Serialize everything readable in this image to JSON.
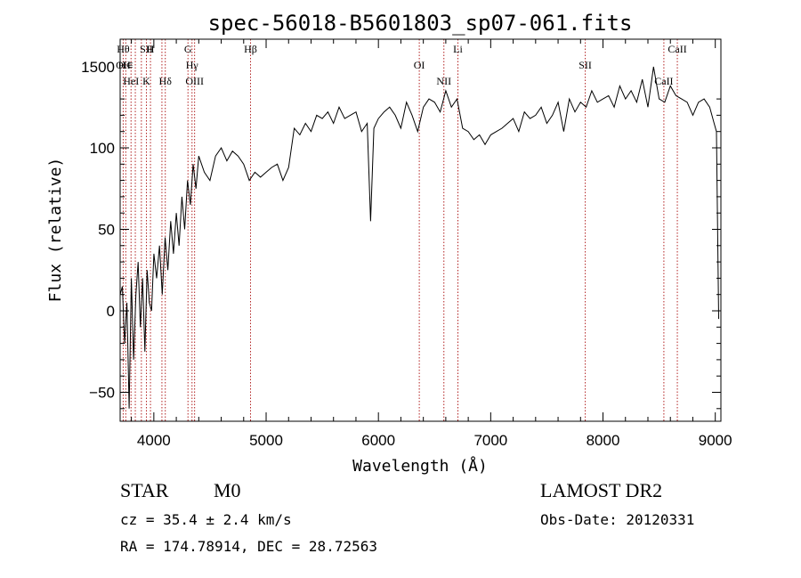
{
  "chart_data": {
    "type": "line",
    "title": "spec-56018-B5601803_sp07-061.fits",
    "xlabel": "Wavelength (Å)",
    "ylabel": "Flux (relative)",
    "xlim": [
      3700,
      9050
    ],
    "ylim": [
      -68,
      1665
    ],
    "x_ticks": [
      4000,
      5000,
      6000,
      7000,
      8000,
      9000
    ],
    "y_ticks": [
      -50,
      0,
      50,
      100,
      1500
    ],
    "y_tick_labels": [
      "−50",
      "0",
      "50",
      "100",
      "1500"
    ],
    "series": [
      {
        "x": [
          3700,
          3720,
          3740,
          3760,
          3780,
          3800,
          3820,
          3840,
          3860,
          3880,
          3900,
          3920,
          3940,
          3960,
          3980,
          4000,
          4025,
          4050,
          4075,
          4100,
          4125,
          4150,
          4175,
          4200,
          4225,
          4250,
          4275,
          4300,
          4325,
          4350,
          4375,
          4400,
          4450,
          4500,
          4550,
          4600,
          4650,
          4700,
          4750,
          4800,
          4850,
          4900,
          4950,
          5000,
          5050,
          5100,
          5150,
          5200,
          5250,
          5300,
          5350,
          5400,
          5450,
          5500,
          5550,
          5600,
          5650,
          5700,
          5750,
          5800,
          5850,
          5900,
          5930,
          5960,
          6000,
          6050,
          6100,
          6150,
          6200,
          6250,
          6300,
          6350,
          6400,
          6450,
          6500,
          6550,
          6600,
          6650,
          6700,
          6750,
          6800,
          6850,
          6900,
          6950,
          7000,
          7050,
          7100,
          7150,
          7200,
          7250,
          7300,
          7350,
          7400,
          7450,
          7500,
          7550,
          7600,
          7650,
          7700,
          7750,
          7800,
          7850,
          7900,
          7950,
          8000,
          8050,
          8100,
          8150,
          8200,
          8250,
          8300,
          8350,
          8400,
          8450,
          8500,
          8550,
          8600,
          8650,
          8700,
          8750,
          8800,
          8850,
          8900,
          8950,
          8990,
          9010,
          9030
        ],
        "y": [
          10,
          15,
          -20,
          5,
          -60,
          20,
          -30,
          10,
          30,
          -10,
          20,
          -25,
          25,
          5,
          0,
          35,
          20,
          40,
          10,
          45,
          25,
          55,
          35,
          60,
          40,
          70,
          50,
          80,
          65,
          90,
          75,
          95,
          85,
          80,
          95,
          100,
          92,
          98,
          95,
          90,
          80,
          85,
          82,
          85,
          88,
          90,
          80,
          88,
          112,
          108,
          115,
          110,
          120,
          118,
          122,
          115,
          125,
          118,
          120,
          122,
          110,
          115,
          55,
          112,
          118,
          122,
          125,
          120,
          112,
          128,
          120,
          110,
          125,
          130,
          128,
          122,
          135,
          125,
          130,
          112,
          110,
          105,
          108,
          102,
          108,
          110,
          112,
          115,
          118,
          110,
          122,
          118,
          120,
          125,
          115,
          120,
          128,
          110,
          130,
          122,
          128,
          125,
          135,
          128,
          130,
          132,
          125,
          138,
          130,
          135,
          128,
          142,
          125,
          1500,
          130,
          128,
          138,
          132,
          130,
          128,
          120,
          128,
          130,
          125,
          115,
          110,
          -5
        ]
      }
    ],
    "line_markers": [
      {
        "wl": 3727,
        "labels": [
          "Hθ",
          "OII"
        ]
      },
      {
        "wl": 3750,
        "labels": [
          "H∊"
        ]
      },
      {
        "wl": 3797,
        "labels": [
          "HeI"
        ]
      },
      {
        "wl": 3835,
        "labels": []
      },
      {
        "wl": 3889,
        "labels": []
      },
      {
        "wl": 3934,
        "labels": [
          "K",
          "SII"
        ]
      },
      {
        "wl": 3970,
        "labels": [
          "H"
        ]
      },
      {
        "wl": 4072,
        "labels": []
      },
      {
        "wl": 4102,
        "labels": [
          "Hδ"
        ]
      },
      {
        "wl": 4304,
        "labels": [
          "G"
        ]
      },
      {
        "wl": 4340,
        "labels": [
          "Hγ"
        ]
      },
      {
        "wl": 4363,
        "labels": [
          "OIII"
        ]
      },
      {
        "wl": 4861,
        "labels": [
          "Hβ"
        ]
      },
      {
        "wl": 6364,
        "labels": [
          "OI"
        ]
      },
      {
        "wl": 6583,
        "labels": [
          "NII"
        ]
      },
      {
        "wl": 6708,
        "labels": [
          "Li"
        ]
      },
      {
        "wl": 7842,
        "labels": [
          "SII"
        ]
      },
      {
        "wl": 8542,
        "labels": [
          "CaII"
        ]
      },
      {
        "wl": 8662,
        "labels": [
          "CaII"
        ]
      }
    ],
    "line_color": "#b22222",
    "grid": false,
    "legend": "none"
  },
  "info": {
    "class_label": "STAR",
    "subclass": "M0",
    "cz_text": "cz = 35.4 ± 2.4 km/s",
    "coords_text": "RA = 174.78914, DEC =  28.72563",
    "survey": "LAMOST DR2",
    "obs_date": "Obs-Date: 20120331"
  }
}
